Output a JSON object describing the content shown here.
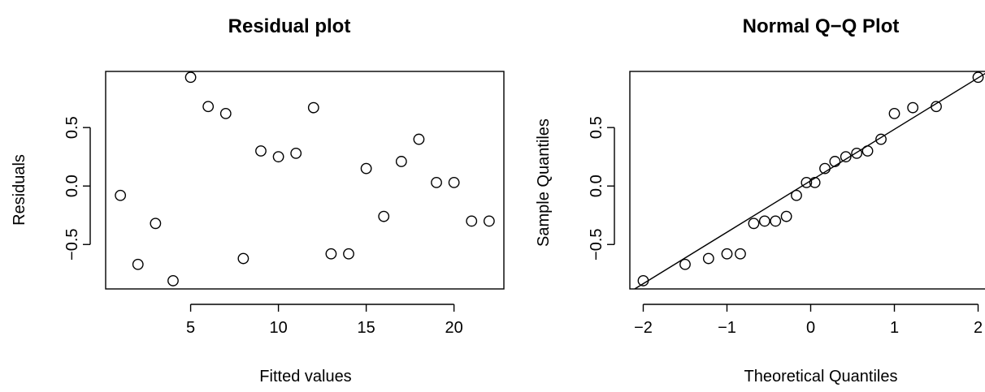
{
  "chart_data": [
    {
      "type": "scatter",
      "title": "Residual plot",
      "xlabel": "Fitted values",
      "ylabel": "Residuals",
      "xlim": [
        0.16,
        22.84
      ],
      "ylim": [
        -0.88,
        0.98
      ],
      "x_ticks": [
        5,
        10,
        15,
        20
      ],
      "x_tick_labels": [
        "5",
        "10",
        "15",
        "20"
      ],
      "y_ticks": [
        -0.5,
        0.0,
        0.5
      ],
      "y_tick_labels": [
        "−0.5",
        "0.0",
        "0.5"
      ],
      "grid": false,
      "x": [
        1,
        2,
        3,
        4,
        5,
        6,
        7,
        8,
        9,
        10,
        11,
        12,
        13,
        14,
        15,
        16,
        17,
        18,
        19,
        20,
        21,
        22
      ],
      "y": [
        -0.08,
        -0.67,
        -0.32,
        -0.81,
        0.93,
        0.68,
        0.62,
        -0.62,
        0.3,
        0.25,
        0.28,
        0.67,
        -0.58,
        -0.58,
        0.15,
        -0.26,
        0.21,
        0.4,
        0.03,
        0.03,
        -0.3,
        -0.3
      ]
    },
    {
      "type": "scatter",
      "title": "Normal Q−Q Plot",
      "xlabel": "Theoretical Quantiles",
      "ylabel": "Sample Quantiles",
      "xlim": [
        -2.16,
        2.16
      ],
      "ylim": [
        -0.88,
        0.98
      ],
      "x_ticks": [
        -2,
        -1,
        0,
        1,
        2
      ],
      "x_tick_labels": [
        "−2",
        "−1",
        "0",
        "1",
        "2"
      ],
      "y_ticks": [
        -0.5,
        0.0,
        0.5
      ],
      "y_tick_labels": [
        "−0.5",
        "0.0",
        "0.5"
      ],
      "grid": false,
      "x": [
        -2.0,
        -1.5,
        -1.22,
        -1.0,
        -0.84,
        -0.68,
        -0.55,
        -0.42,
        -0.29,
        -0.17,
        -0.05,
        0.05,
        0.17,
        0.29,
        0.42,
        0.55,
        0.68,
        0.84,
        1.0,
        1.22,
        1.5,
        2.0
      ],
      "y": [
        -0.81,
        -0.67,
        -0.62,
        -0.58,
        -0.58,
        -0.32,
        -0.3,
        -0.3,
        -0.26,
        -0.08,
        0.03,
        0.03,
        0.15,
        0.21,
        0.25,
        0.28,
        0.3,
        0.4,
        0.62,
        0.67,
        0.68,
        0.93
      ],
      "reference_line": {
        "intercept": 0.045,
        "slope": 0.44
      }
    }
  ]
}
